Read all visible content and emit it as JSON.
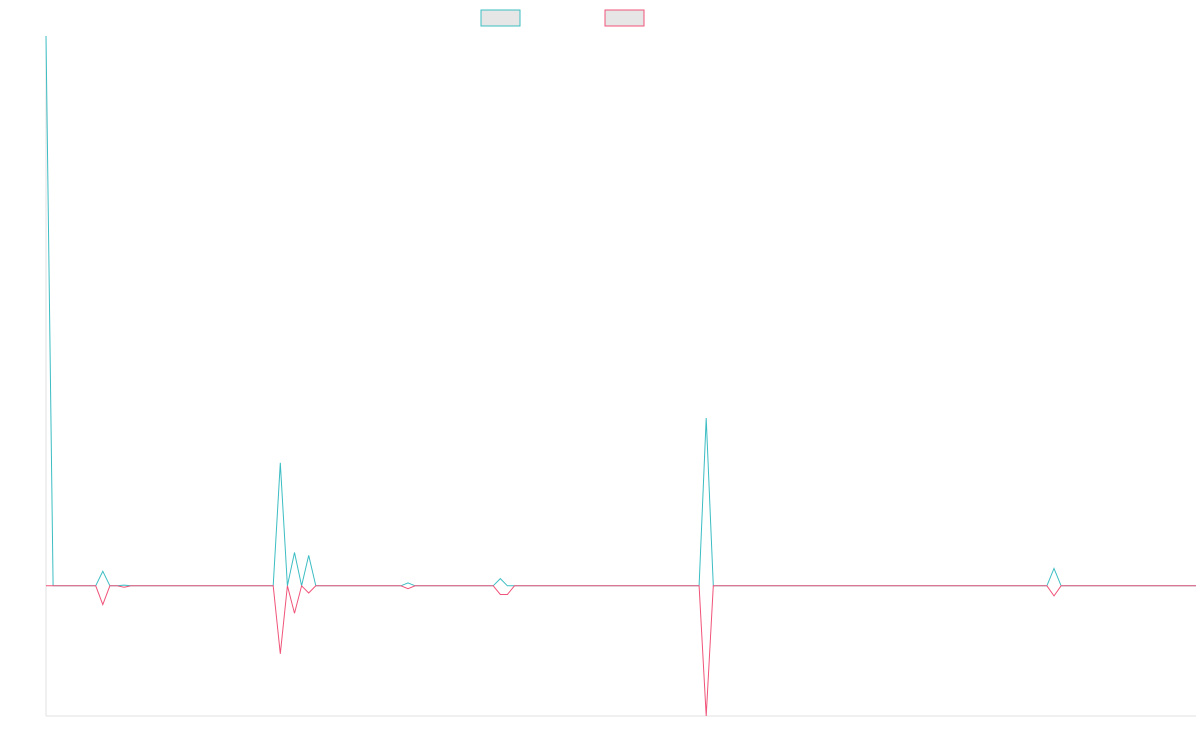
{
  "chart_data": {
    "type": "line",
    "title": "",
    "xlabel": "",
    "ylabel": "",
    "grid": false,
    "legend_position": "top-center",
    "ylim": [
      -0.9,
      3.8
    ],
    "x_points": 163,
    "series": [
      {
        "color": "#3cbdc3",
        "swatch_fill": "#e6e6e6",
        "values": [
          {
            "i": 0,
            "v": 3.8
          },
          {
            "i": 1,
            "v": 0
          },
          {
            "i": 7,
            "v": 0
          },
          {
            "i": 8,
            "v": 0.1
          },
          {
            "i": 9,
            "v": 0
          },
          {
            "i": 10,
            "v": 0
          },
          {
            "i": 11,
            "v": 0.005
          },
          {
            "i": 12,
            "v": 0
          },
          {
            "i": 32,
            "v": 0
          },
          {
            "i": 33,
            "v": 0.85
          },
          {
            "i": 34,
            "v": 0
          },
          {
            "i": 35,
            "v": 0.23
          },
          {
            "i": 36,
            "v": 0
          },
          {
            "i": 37,
            "v": 0.21
          },
          {
            "i": 38,
            "v": 0
          },
          {
            "i": 50,
            "v": 0
          },
          {
            "i": 51,
            "v": 0.02
          },
          {
            "i": 52,
            "v": 0
          },
          {
            "i": 63,
            "v": 0
          },
          {
            "i": 64,
            "v": 0.05
          },
          {
            "i": 65,
            "v": 0
          },
          {
            "i": 92,
            "v": 0
          },
          {
            "i": 93,
            "v": 1.16
          },
          {
            "i": 94,
            "v": 0
          },
          {
            "i": 141,
            "v": 0
          },
          {
            "i": 142,
            "v": 0.12
          },
          {
            "i": 143,
            "v": 0
          },
          {
            "i": 162,
            "v": 0
          }
        ]
      },
      {
        "color": "#f0547a",
        "swatch_fill": "#e6e6e6",
        "values": [
          {
            "i": 0,
            "v": 0
          },
          {
            "i": 7,
            "v": 0
          },
          {
            "i": 8,
            "v": -0.13
          },
          {
            "i": 9,
            "v": 0
          },
          {
            "i": 10,
            "v": 0
          },
          {
            "i": 11,
            "v": -0.01
          },
          {
            "i": 12,
            "v": 0
          },
          {
            "i": 32,
            "v": 0
          },
          {
            "i": 33,
            "v": -0.47
          },
          {
            "i": 34,
            "v": 0
          },
          {
            "i": 35,
            "v": -0.19
          },
          {
            "i": 36,
            "v": 0
          },
          {
            "i": 37,
            "v": -0.05
          },
          {
            "i": 38,
            "v": 0
          },
          {
            "i": 50,
            "v": 0
          },
          {
            "i": 51,
            "v": -0.02
          },
          {
            "i": 52,
            "v": 0
          },
          {
            "i": 63,
            "v": 0
          },
          {
            "i": 64,
            "v": -0.06
          },
          {
            "i": 65,
            "v": -0.06
          },
          {
            "i": 66,
            "v": 0
          },
          {
            "i": 92,
            "v": 0
          },
          {
            "i": 93,
            "v": -0.9
          },
          {
            "i": 94,
            "v": 0
          },
          {
            "i": 141,
            "v": 0
          },
          {
            "i": 142,
            "v": -0.07
          },
          {
            "i": 143,
            "v": 0
          },
          {
            "i": 162,
            "v": 0
          }
        ]
      }
    ]
  }
}
